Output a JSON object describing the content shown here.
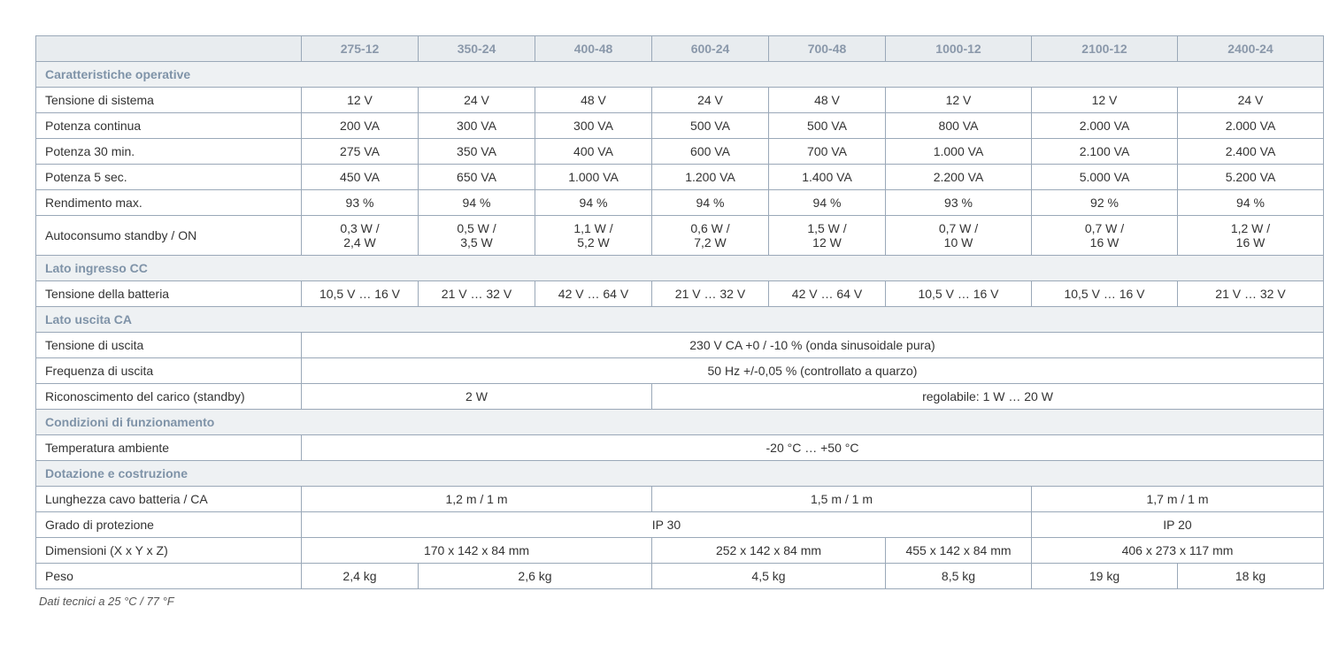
{
  "colors": {
    "border": "#9aa8b8",
    "header_bg": "#e8ecef",
    "header_text": "#8a98aa",
    "section_bg": "#eef1f3",
    "section_text": "#7f93a8",
    "body_text": "#333333",
    "page_bg": "#ffffff"
  },
  "typography": {
    "font_family": "Segoe UI, Arial, sans-serif",
    "font_size_pt": 10,
    "header_weight": 600
  },
  "columns": [
    "",
    "275-12",
    "350-24",
    "400-48",
    "600-24",
    "700-48",
    "1000-12",
    "2100-12",
    "2400-24"
  ],
  "sections": [
    {
      "title": "Caratteristiche operative",
      "rows": [
        {
          "label": "Tensione di sistema",
          "cells": [
            {
              "text": "12 V"
            },
            {
              "text": "24 V"
            },
            {
              "text": "48 V"
            },
            {
              "text": "24 V"
            },
            {
              "text": "48 V"
            },
            {
              "text": "12 V"
            },
            {
              "text": "12 V"
            },
            {
              "text": "24 V"
            }
          ]
        },
        {
          "label": "Potenza continua",
          "cells": [
            {
              "text": "200 VA"
            },
            {
              "text": "300 VA"
            },
            {
              "text": "300 VA"
            },
            {
              "text": "500 VA"
            },
            {
              "text": "500 VA"
            },
            {
              "text": "800 VA"
            },
            {
              "text": "2.000 VA"
            },
            {
              "text": "2.000 VA"
            }
          ]
        },
        {
          "label": "Potenza 30 min.",
          "cells": [
            {
              "text": "275 VA"
            },
            {
              "text": "350 VA"
            },
            {
              "text": "400 VA"
            },
            {
              "text": "600 VA"
            },
            {
              "text": "700 VA"
            },
            {
              "text": "1.000 VA"
            },
            {
              "text": "2.100 VA"
            },
            {
              "text": "2.400 VA"
            }
          ]
        },
        {
          "label": "Potenza 5 sec.",
          "cells": [
            {
              "text": "450 VA"
            },
            {
              "text": "650 VA"
            },
            {
              "text": "1.000 VA"
            },
            {
              "text": "1.200 VA"
            },
            {
              "text": "1.400 VA"
            },
            {
              "text": "2.200 VA"
            },
            {
              "text": "5.000 VA"
            },
            {
              "text": "5.200 VA"
            }
          ]
        },
        {
          "label": "Rendimento max.",
          "cells": [
            {
              "text": "93 %"
            },
            {
              "text": "94 %"
            },
            {
              "text": "94 %"
            },
            {
              "text": "94 %"
            },
            {
              "text": "94 %"
            },
            {
              "text": "93 %"
            },
            {
              "text": "92 %"
            },
            {
              "text": "94 %"
            }
          ]
        },
        {
          "label": "Autoconsumo standby / ON",
          "cells": [
            {
              "text": "0,3 W /\n2,4 W"
            },
            {
              "text": "0,5 W /\n3,5 W"
            },
            {
              "text": "1,1 W /\n5,2 W"
            },
            {
              "text": "0,6 W /\n7,2 W"
            },
            {
              "text": "1,5 W /\n12 W"
            },
            {
              "text": "0,7 W /\n10 W"
            },
            {
              "text": "0,7 W /\n16 W"
            },
            {
              "text": "1,2 W /\n16 W"
            }
          ]
        }
      ]
    },
    {
      "title": "Lato ingresso CC",
      "rows": [
        {
          "label": "Tensione della batteria",
          "cells": [
            {
              "text": "10,5 V … 16 V"
            },
            {
              "text": "21 V … 32 V"
            },
            {
              "text": "42 V … 64 V"
            },
            {
              "text": "21 V … 32 V"
            },
            {
              "text": "42 V … 64 V"
            },
            {
              "text": "10,5 V … 16 V"
            },
            {
              "text": "10,5 V … 16 V"
            },
            {
              "text": "21 V … 32 V"
            }
          ]
        }
      ]
    },
    {
      "title": "Lato uscita CA",
      "rows": [
        {
          "label": "Tensione di uscita",
          "cells": [
            {
              "text": "230 V CA +0 / -10 % (onda sinusoidale pura)",
              "span": 8
            }
          ]
        },
        {
          "label": "Frequenza di uscita",
          "cells": [
            {
              "text": "50 Hz +/-0,05 % (controllato a quarzo)",
              "span": 8
            }
          ]
        },
        {
          "label": "Riconoscimento del carico (standby)",
          "cells": [
            {
              "text": "2 W",
              "span": 3
            },
            {
              "text": "regolabile: 1 W … 20 W",
              "span": 5
            }
          ]
        }
      ]
    },
    {
      "title": "Condizioni di funzionamento",
      "rows": [
        {
          "label": "Temperatura ambiente",
          "cells": [
            {
              "text": "-20 °C … +50 °C",
              "span": 8
            }
          ]
        }
      ]
    },
    {
      "title": "Dotazione e costruzione",
      "rows": [
        {
          "label": "Lunghezza cavo batteria / CA",
          "cells": [
            {
              "text": "1,2 m / 1 m",
              "span": 3
            },
            {
              "text": "1,5 m / 1 m",
              "span": 3
            },
            {
              "text": "1,7 m / 1 m",
              "span": 2
            }
          ]
        },
        {
          "label": "Grado di protezione",
          "cells": [
            {
              "text": "IP 30",
              "span": 6
            },
            {
              "text": "IP 20",
              "span": 2
            }
          ]
        },
        {
          "label": "Dimensioni (X x Y x Z)",
          "cells": [
            {
              "text": "170 x 142 x 84 mm",
              "span": 3
            },
            {
              "text": "252 x 142 x 84 mm",
              "span": 2
            },
            {
              "text": "455 x 142 x 84 mm",
              "span": 1
            },
            {
              "text": "406 x 273 x 117 mm",
              "span": 2
            }
          ]
        },
        {
          "label": "Peso",
          "cells": [
            {
              "text": "2,4 kg",
              "span": 1
            },
            {
              "text": "2,6 kg",
              "span": 2
            },
            {
              "text": "4,5 kg",
              "span": 2
            },
            {
              "text": "8,5 kg",
              "span": 1
            },
            {
              "text": "19 kg",
              "span": 1
            },
            {
              "text": "18 kg",
              "span": 1
            }
          ]
        }
      ]
    }
  ],
  "footnote": "Dati tecnici a 25 °C / 77 °F"
}
